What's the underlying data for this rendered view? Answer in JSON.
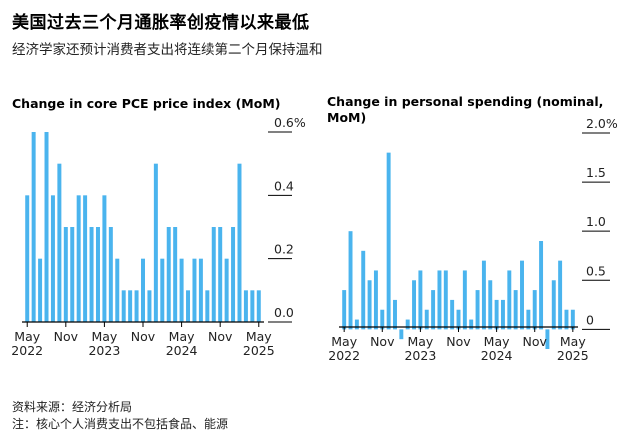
{
  "title": "美国过去三个月通胀率创疫情以来最低",
  "subtitle": "经济学家还预计消费者支出将连续第二个月保持温和",
  "footer": {
    "source": "资料来源：经济分析局",
    "note": "注：核心个人消费支出不包括食品、能源"
  },
  "colors": {
    "bar": "#4ab4ee",
    "axis": "#000000",
    "grid": "#cccccc"
  },
  "chart_data": [
    {
      "type": "bar",
      "title": "Change in core PCE price index (MoM)",
      "ylabel": "",
      "ylim": [
        0,
        0.6
      ],
      "yticks": [
        "0.6%",
        "0.4",
        "0.2",
        "0.0"
      ],
      "ytick_values": [
        0.6,
        0.4,
        0.2,
        0.0
      ],
      "xtick_labels": [
        {
          "index": 0,
          "month": "May",
          "year": "2022"
        },
        {
          "index": 6,
          "month": "Nov",
          "year": ""
        },
        {
          "index": 12,
          "month": "May",
          "year": "2023"
        },
        {
          "index": 18,
          "month": "Nov",
          "year": ""
        },
        {
          "index": 24,
          "month": "May",
          "year": "2024"
        },
        {
          "index": 30,
          "month": "Nov",
          "year": ""
        },
        {
          "index": 36,
          "month": "May",
          "year": "2025"
        }
      ],
      "categories": [
        "2022-05",
        "2022-06",
        "2022-07",
        "2022-08",
        "2022-09",
        "2022-10",
        "2022-11",
        "2022-12",
        "2023-01",
        "2023-02",
        "2023-03",
        "2023-04",
        "2023-05",
        "2023-06",
        "2023-07",
        "2023-08",
        "2023-09",
        "2023-10",
        "2023-11",
        "2023-12",
        "2024-01",
        "2024-02",
        "2024-03",
        "2024-04",
        "2024-05",
        "2024-06",
        "2024-07",
        "2024-08",
        "2024-09",
        "2024-10",
        "2024-11",
        "2024-12",
        "2025-01",
        "2025-02",
        "2025-03",
        "2025-04",
        "2025-05"
      ],
      "values": [
        0.4,
        0.6,
        0.2,
        0.6,
        0.4,
        0.5,
        0.3,
        0.3,
        0.4,
        0.4,
        0.3,
        0.3,
        0.4,
        0.3,
        0.2,
        0.1,
        0.1,
        0.1,
        0.2,
        0.1,
        0.5,
        0.2,
        0.3,
        0.3,
        0.2,
        0.1,
        0.2,
        0.2,
        0.1,
        0.3,
        0.3,
        0.2,
        0.3,
        0.5,
        0.1,
        0.1,
        0.1
      ]
    },
    {
      "type": "bar",
      "title": "Change in personal spending (nominal, MoM)",
      "ylabel": "",
      "ylim": [
        -0.2,
        2.0
      ],
      "yticks": [
        "2.0%",
        "1.5",
        "1.0",
        "0.5",
        "0"
      ],
      "ytick_values": [
        2.0,
        1.5,
        1.0,
        0.5,
        0.0
      ],
      "xtick_labels": [
        {
          "index": 0,
          "month": "May",
          "year": "2022"
        },
        {
          "index": 6,
          "month": "Nov",
          "year": ""
        },
        {
          "index": 12,
          "month": "May",
          "year": "2023"
        },
        {
          "index": 18,
          "month": "Nov",
          "year": ""
        },
        {
          "index": 24,
          "month": "May",
          "year": "2024"
        },
        {
          "index": 30,
          "month": "Nov",
          "year": ""
        },
        {
          "index": 36,
          "month": "May",
          "year": "2025"
        }
      ],
      "categories": [
        "2022-05",
        "2022-06",
        "2022-07",
        "2022-08",
        "2022-09",
        "2022-10",
        "2022-11",
        "2022-12",
        "2023-01",
        "2023-02",
        "2023-03",
        "2023-04",
        "2023-05",
        "2023-06",
        "2023-07",
        "2023-08",
        "2023-09",
        "2023-10",
        "2023-11",
        "2023-12",
        "2024-01",
        "2024-02",
        "2024-03",
        "2024-04",
        "2024-05",
        "2024-06",
        "2024-07",
        "2024-08",
        "2024-09",
        "2024-10",
        "2024-11",
        "2024-12",
        "2025-01",
        "2025-02",
        "2025-03",
        "2025-04",
        "2025-05"
      ],
      "values": [
        0.4,
        1.0,
        0.1,
        0.8,
        0.5,
        0.6,
        0.2,
        1.8,
        0.3,
        -0.1,
        0.1,
        0.5,
        0.6,
        0.2,
        0.4,
        0.6,
        0.6,
        0.3,
        0.2,
        0.6,
        0.1,
        0.4,
        0.7,
        0.5,
        0.3,
        0.3,
        0.6,
        0.4,
        0.7,
        0.2,
        0.4,
        0.9,
        -0.2,
        0.5,
        0.7,
        0.2,
        0.2
      ]
    }
  ]
}
